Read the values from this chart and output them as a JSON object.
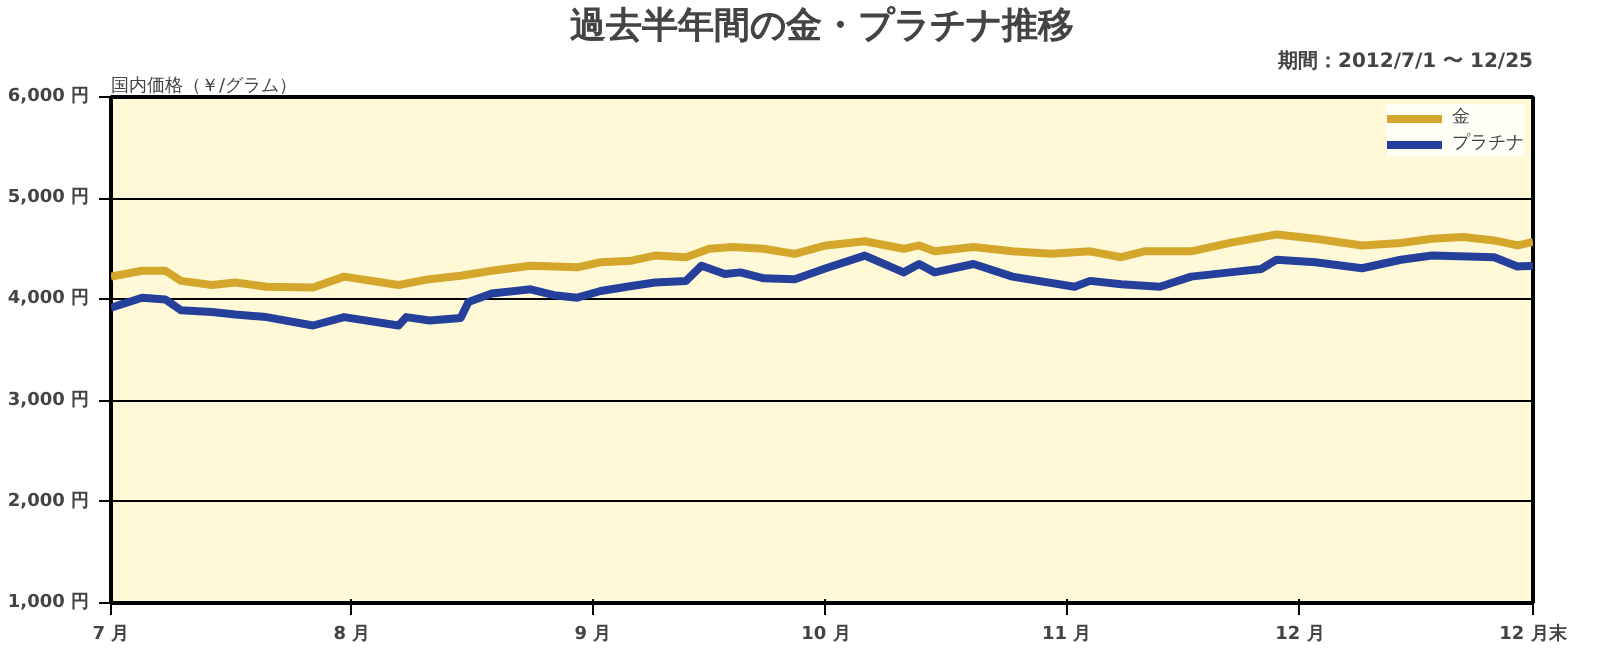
{
  "chart_data": {
    "type": "line",
    "title": "過去半年間の金・プラチナ推移",
    "subtitle": "期間：2012/7/1 〜 12/25",
    "ylabel": "国内価格（￥/グラム）",
    "xlim": [
      "2012-07-01",
      "2012-12-31"
    ],
    "xticks": [
      {
        "value": "2012-07-01",
        "label": "7 月"
      },
      {
        "value": "2012-08-01",
        "label": "8 月"
      },
      {
        "value": "2012-09-01",
        "label": "9 月"
      },
      {
        "value": "2012-10-01",
        "label": "10 月"
      },
      {
        "value": "2012-11-01",
        "label": "11 月"
      },
      {
        "value": "2012-12-01",
        "label": "12 月"
      },
      {
        "value": "2012-12-31",
        "label": "12 月末"
      }
    ],
    "ylim": [
      1000,
      6000
    ],
    "yticks": [
      {
        "value": 1000,
        "label": "1,000 円"
      },
      {
        "value": 2000,
        "label": "2,000 円"
      },
      {
        "value": 3000,
        "label": "3,000 円"
      },
      {
        "value": 4000,
        "label": "4,000 円"
      },
      {
        "value": 5000,
        "label": "5,000 円"
      },
      {
        "value": 6000,
        "label": "6,000 円"
      }
    ],
    "grid": "y",
    "legend": "top right",
    "marker": "none",
    "line_style": "solid",
    "series": [
      {
        "name": "金",
        "color": "#d4a72c",
        "x": [
          "2012-07-01",
          "2012-07-05",
          "2012-07-08",
          "2012-07-10",
          "2012-07-14",
          "2012-07-17",
          "2012-07-21",
          "2012-07-27",
          "2012-07-31",
          "2012-08-07",
          "2012-08-11",
          "2012-08-15",
          "2012-08-19",
          "2012-08-24",
          "2012-08-30",
          "2012-09-02",
          "2012-09-06",
          "2012-09-09",
          "2012-09-13",
          "2012-09-16",
          "2012-09-19",
          "2012-09-23",
          "2012-09-27",
          "2012-10-01",
          "2012-10-06",
          "2012-10-11",
          "2012-10-13",
          "2012-10-15",
          "2012-10-20",
          "2012-10-25",
          "2012-10-30",
          "2012-11-04",
          "2012-11-08",
          "2012-11-11",
          "2012-11-17",
          "2012-11-22",
          "2012-11-28",
          "2012-12-03",
          "2012-12-09",
          "2012-12-14",
          "2012-12-18",
          "2012-12-22",
          "2012-12-26",
          "2012-12-29",
          "2012-12-31"
        ],
        "values": [
          4225,
          4283,
          4283,
          4183,
          4142,
          4167,
          4125,
          4117,
          4225,
          4142,
          4200,
          4233,
          4283,
          4333,
          4317,
          4367,
          4383,
          4433,
          4417,
          4500,
          4517,
          4500,
          4450,
          4533,
          4575,
          4500,
          4533,
          4475,
          4517,
          4475,
          4450,
          4475,
          4417,
          4475,
          4475,
          4558,
          4642,
          4600,
          4533,
          4558,
          4600,
          4617,
          4583,
          4533,
          4567
        ]
      },
      {
        "name": "プラチナ",
        "color": "#24409a",
        "x": [
          "2012-07-01",
          "2012-07-05",
          "2012-07-08",
          "2012-07-10",
          "2012-07-14",
          "2012-07-17",
          "2012-07-21",
          "2012-07-27",
          "2012-07-31",
          "2012-08-07",
          "2012-08-08",
          "2012-08-11",
          "2012-08-15",
          "2012-08-16",
          "2012-08-19",
          "2012-08-24",
          "2012-08-27",
          "2012-08-30",
          "2012-09-02",
          "2012-09-06",
          "2012-09-09",
          "2012-09-13",
          "2012-09-15",
          "2012-09-18",
          "2012-09-20",
          "2012-09-23",
          "2012-09-27",
          "2012-10-01",
          "2012-10-06",
          "2012-10-11",
          "2012-10-13",
          "2012-10-15",
          "2012-10-20",
          "2012-10-25",
          "2012-11-02",
          "2012-11-04",
          "2012-11-08",
          "2012-11-13",
          "2012-11-17",
          "2012-11-22",
          "2012-11-26",
          "2012-11-28",
          "2012-12-03",
          "2012-12-09",
          "2012-12-14",
          "2012-12-18",
          "2012-12-26",
          "2012-12-29",
          "2012-12-31"
        ],
        "values": [
          3917,
          4017,
          4000,
          3892,
          3875,
          3850,
          3825,
          3742,
          3825,
          3742,
          3825,
          3792,
          3817,
          3975,
          4058,
          4100,
          4042,
          4017,
          4083,
          4133,
          4167,
          4183,
          4333,
          4250,
          4267,
          4208,
          4200,
          4308,
          4433,
          4267,
          4350,
          4267,
          4350,
          4225,
          4125,
          4183,
          4150,
          4125,
          4225,
          4267,
          4300,
          4392,
          4367,
          4308,
          4392,
          4433,
          4417,
          4325,
          4333
        ]
      }
    ]
  }
}
